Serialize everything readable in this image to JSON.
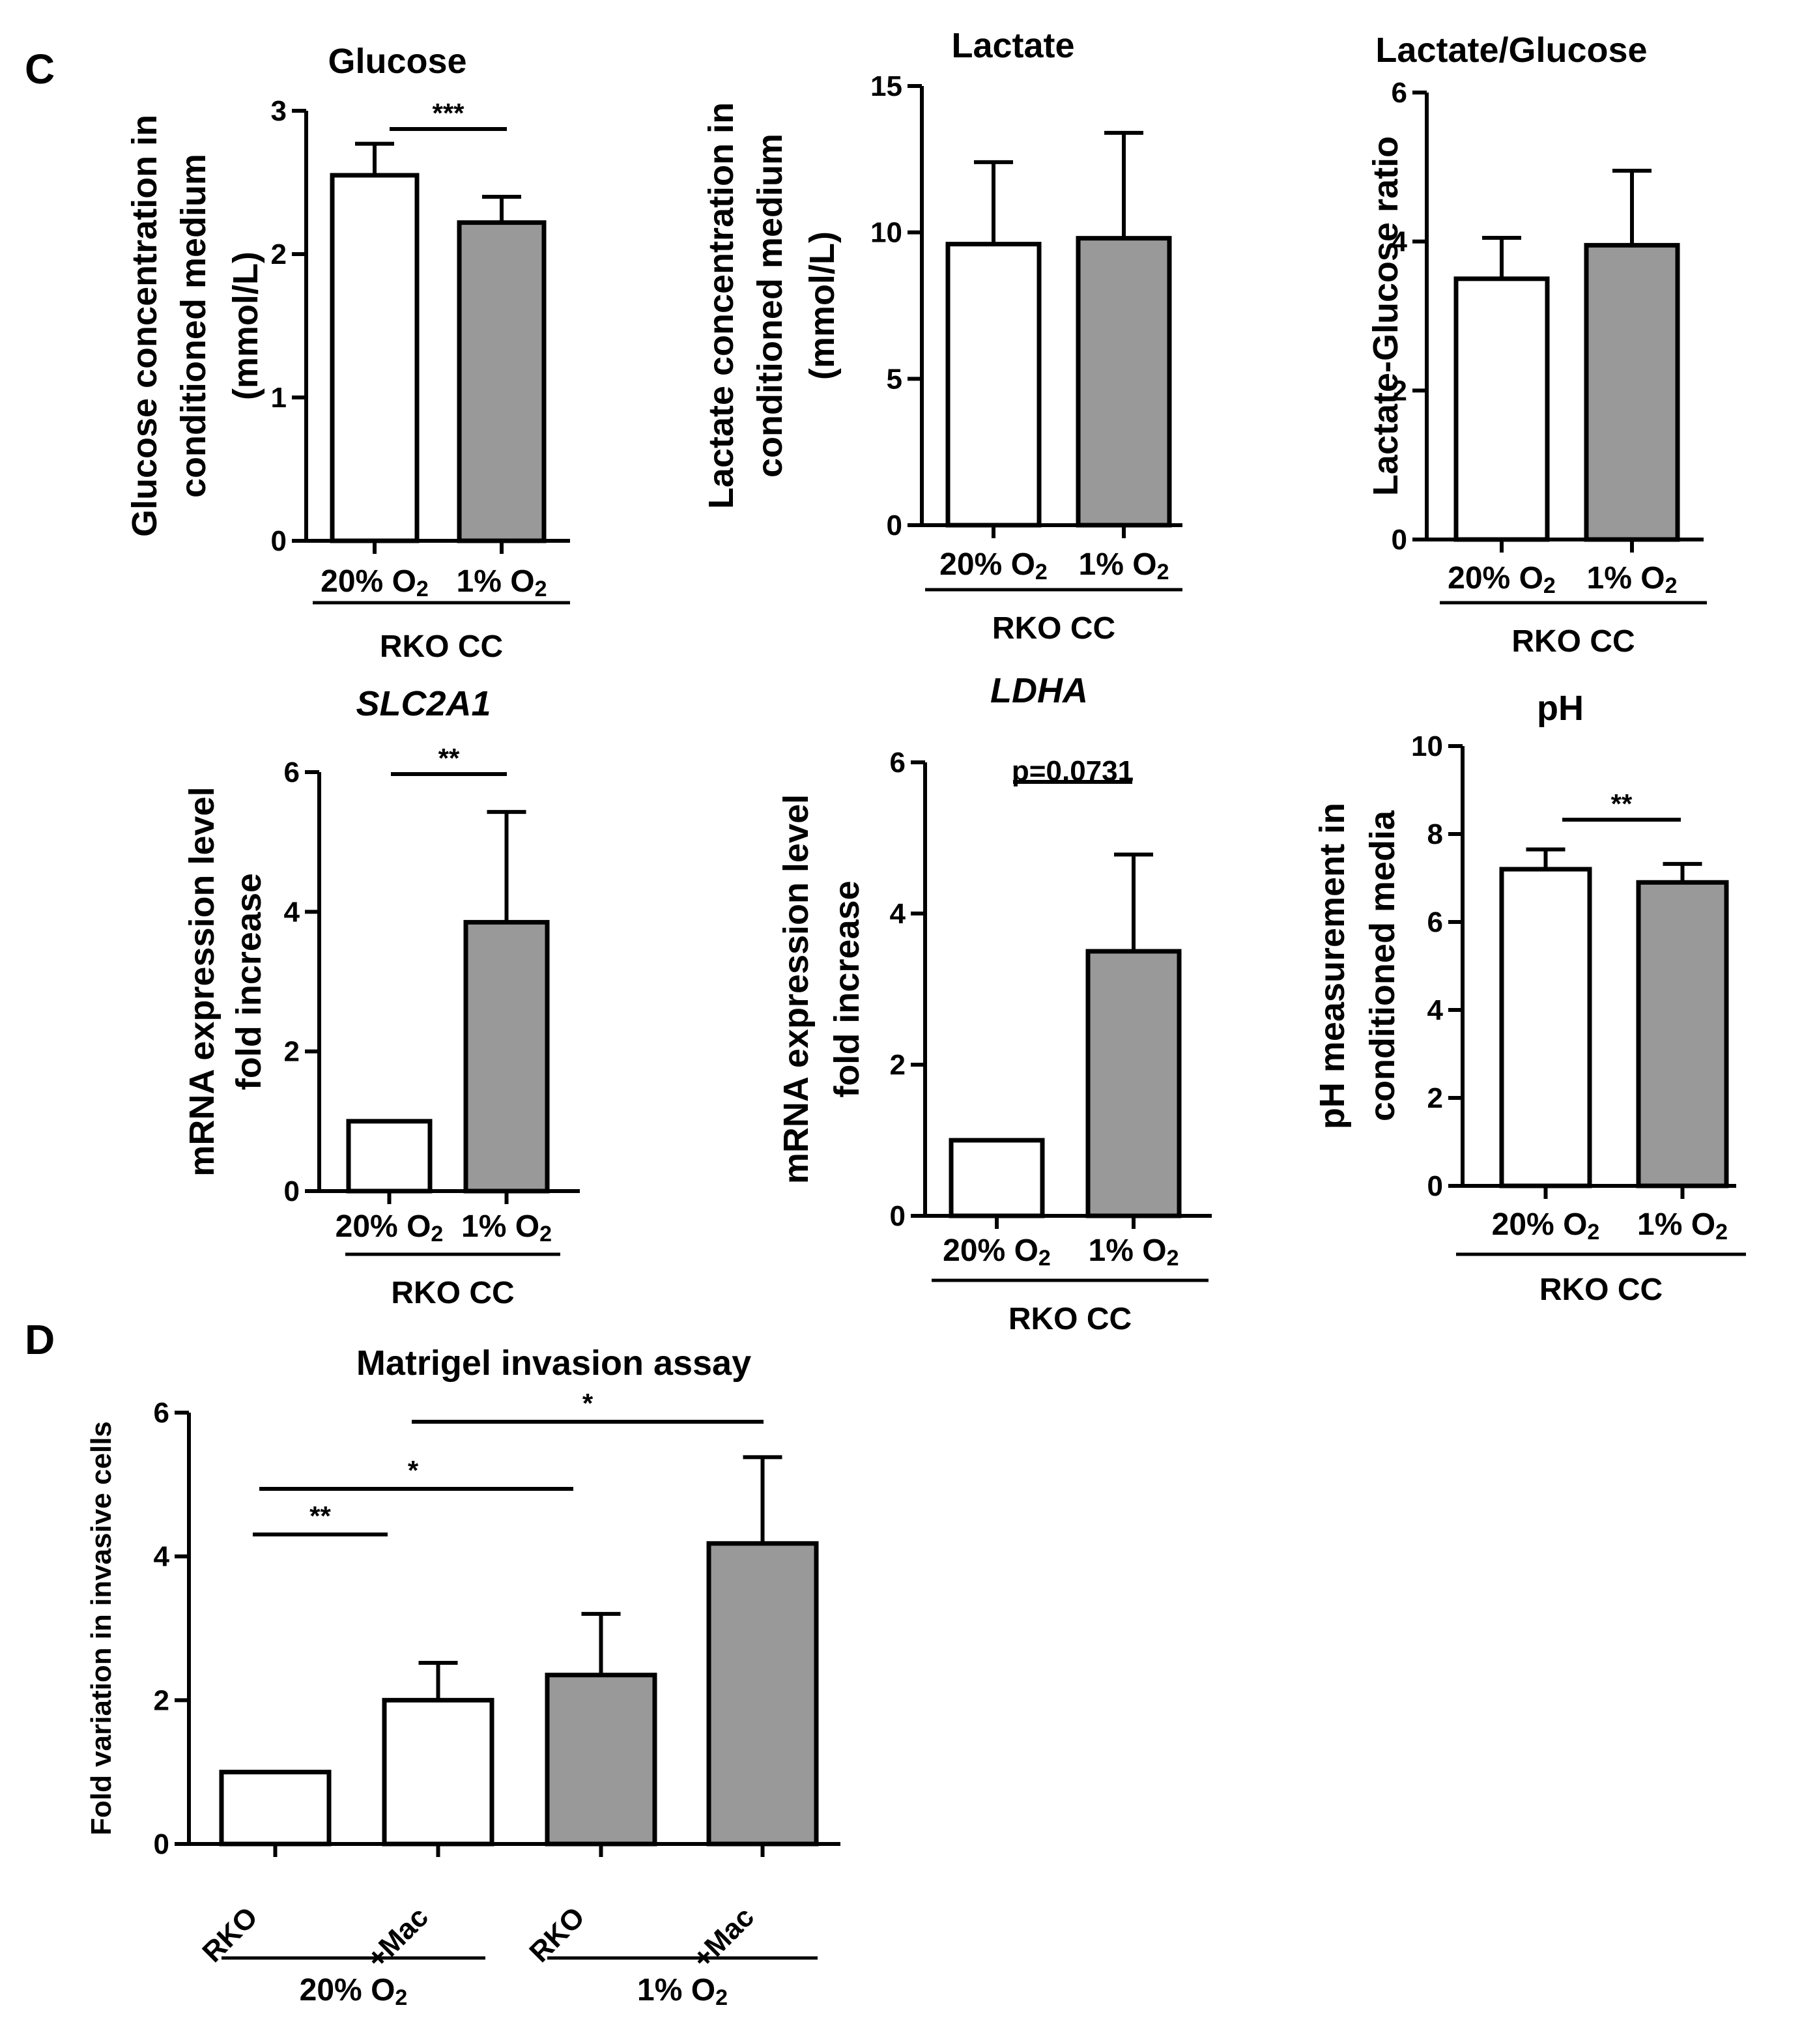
{
  "panel_labels": [
    "C",
    "D"
  ],
  "colors": {
    "bar_white": "#ffffff",
    "bar_gray": "#999999",
    "stroke": "#000000"
  },
  "chart_data": [
    {
      "id": "glucose",
      "type": "bar",
      "title": "Glucose",
      "title_italic": false,
      "ylabel": [
        "Glucose concentration in",
        "conditioned medium",
        "(mmol/L)"
      ],
      "ylim": [
        0,
        3
      ],
      "yticks": [
        0,
        1,
        2,
        3
      ],
      "categories": [
        "20% O2",
        "1% O2"
      ],
      "values": [
        2.55,
        2.22
      ],
      "errors": [
        0.22,
        0.18
      ],
      "fills": [
        "white",
        "gray"
      ],
      "group_label": "RKO CC",
      "significance": [
        {
          "from": 0,
          "to": 1,
          "label": "***"
        }
      ]
    },
    {
      "id": "lactate",
      "type": "bar",
      "title": "Lactate",
      "title_italic": false,
      "ylabel": [
        "Lactate concentration in",
        "conditioned medium",
        "(mmol/L)"
      ],
      "ylim": [
        0,
        15
      ],
      "yticks": [
        0,
        5,
        10,
        15
      ],
      "categories": [
        "20% O2",
        "1% O2"
      ],
      "values": [
        9.6,
        9.8
      ],
      "errors": [
        2.8,
        3.6
      ],
      "fills": [
        "white",
        "gray"
      ],
      "group_label": "RKO CC",
      "significance": []
    },
    {
      "id": "ratio",
      "type": "bar",
      "title": "Lactate/Glucose",
      "title_italic": false,
      "ylabel": [
        "Lactate-Glucose ratio"
      ],
      "ylim": [
        0,
        6
      ],
      "yticks": [
        0,
        2,
        4,
        6
      ],
      "categories": [
        "20% O2",
        "1% O2"
      ],
      "values": [
        3.5,
        3.95
      ],
      "errors": [
        0.55,
        1.0
      ],
      "fills": [
        "white",
        "gray"
      ],
      "group_label": "RKO CC",
      "significance": []
    },
    {
      "id": "slc2a1",
      "type": "bar",
      "title": "SLC2A1",
      "title_italic": true,
      "ylabel": [
        "mRNA expression level",
        "fold increase"
      ],
      "ylim": [
        0,
        6
      ],
      "yticks": [
        0,
        2,
        4,
        6
      ],
      "categories": [
        "20% O2",
        "1% O2"
      ],
      "values": [
        1.0,
        3.85
      ],
      "errors": [
        0,
        1.58
      ],
      "fills": [
        "white",
        "gray"
      ],
      "group_label": "RKO CC",
      "significance": [
        {
          "from": 0,
          "to": 1,
          "label": "**"
        }
      ]
    },
    {
      "id": "ldha",
      "type": "bar",
      "title": "LDHA",
      "title_italic": true,
      "ylabel": [
        "mRNA expression level",
        "fold increase"
      ],
      "ylim": [
        0,
        6
      ],
      "yticks": [
        0,
        2,
        4,
        6
      ],
      "categories": [
        "20% O2",
        "1% O2"
      ],
      "values": [
        1.0,
        3.5
      ],
      "errors": [
        0,
        1.28
      ],
      "fills": [
        "white",
        "gray"
      ],
      "group_label": "RKO CC",
      "significance": [
        {
          "from": 0,
          "to": 1,
          "label": "p=0.0731"
        }
      ]
    },
    {
      "id": "ph",
      "type": "bar",
      "title": "pH",
      "title_italic": false,
      "ylabel": [
        "pH measurement in",
        "conditioned media"
      ],
      "ylim": [
        0,
        10
      ],
      "yticks": [
        0,
        2,
        4,
        6,
        8,
        10
      ],
      "categories": [
        "20% O2",
        "1% O2"
      ],
      "values": [
        7.2,
        6.9
      ],
      "errors": [
        0.45,
        0.42
      ],
      "fills": [
        "white",
        "gray"
      ],
      "group_label": "RKO CC",
      "significance": [
        {
          "from": 0,
          "to": 1,
          "label": "**"
        }
      ]
    },
    {
      "id": "matrigel",
      "type": "bar",
      "title": "Matrigel invasion assay",
      "title_italic": false,
      "ylabel": [
        "Fold variation in invasive cells"
      ],
      "ylim": [
        0,
        6
      ],
      "yticks": [
        0,
        2,
        4,
        6
      ],
      "categories": [
        "RKO",
        "+Mac",
        "RKO",
        "+Mac"
      ],
      "values": [
        1.0,
        2.0,
        2.35,
        4.18
      ],
      "errors": [
        0,
        0.52,
        0.85,
        1.2
      ],
      "fills": [
        "white",
        "white",
        "gray",
        "gray"
      ],
      "groups": [
        {
          "label": "20% O2",
          "from": 0,
          "to": 1
        },
        {
          "label": "1% O2",
          "from": 2,
          "to": 3
        }
      ],
      "significance": [
        {
          "from": 0,
          "to": 1,
          "label": "**"
        },
        {
          "from": 0,
          "to": 2,
          "label": "*"
        },
        {
          "from": 1,
          "to": 3,
          "label": "*"
        }
      ]
    }
  ]
}
